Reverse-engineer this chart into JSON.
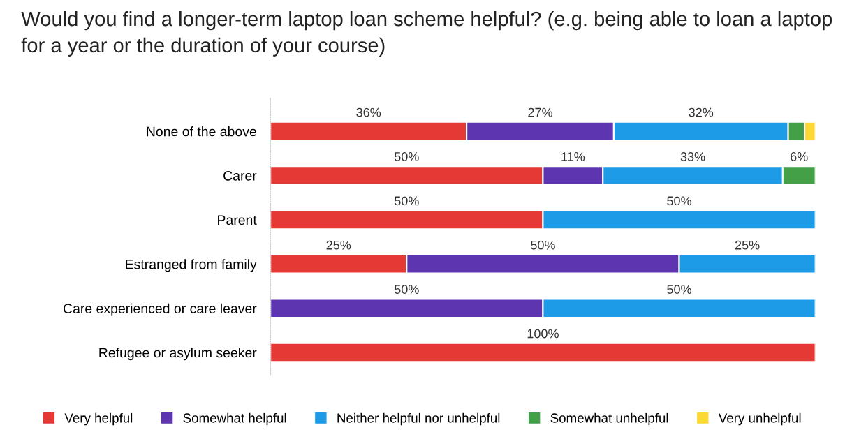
{
  "chart_data": {
    "type": "bar",
    "orientation": "horizontal",
    "stacked": true,
    "title": "Would you find a longer-term laptop loan scheme helpful? (e.g. being able to loan a laptop for a year or the duration of your course)",
    "categories": [
      "None of the above",
      "Carer",
      "Parent",
      "Estranged from family",
      "Care experienced or care leaver",
      "Refugee or asylum seeker"
    ],
    "series": [
      {
        "name": "Very helpful",
        "color": "#e53935",
        "values": [
          36,
          50,
          50,
          25,
          null,
          100
        ],
        "value_labels": [
          "36%",
          "50%",
          "50%",
          "25%",
          null,
          "100%"
        ]
      },
      {
        "name": "Somewhat helpful",
        "color": "#5e35b1",
        "values": [
          27,
          11,
          null,
          50,
          50,
          null
        ],
        "value_labels": [
          "27%",
          "11%",
          null,
          "50%",
          "50%",
          null
        ]
      },
      {
        "name": "Neither helpful nor unhelpful",
        "color": "#1e9be6",
        "values": [
          32,
          33,
          50,
          25,
          50,
          null
        ],
        "value_labels": [
          "32%",
          "33%",
          "50%",
          "25%",
          "50%",
          null
        ]
      },
      {
        "name": "Somewhat unhelpful",
        "color": "#43a047",
        "values": [
          3,
          6,
          null,
          null,
          null,
          null
        ],
        "value_labels": [
          null,
          "6%",
          null,
          null,
          null,
          null
        ]
      },
      {
        "name": "Very unhelpful",
        "color": "#fdd835",
        "values": [
          2,
          null,
          null,
          null,
          null,
          null
        ],
        "value_labels": [
          null,
          null,
          null,
          null,
          null,
          null
        ]
      }
    ],
    "grid": false,
    "legend": "bottom"
  }
}
